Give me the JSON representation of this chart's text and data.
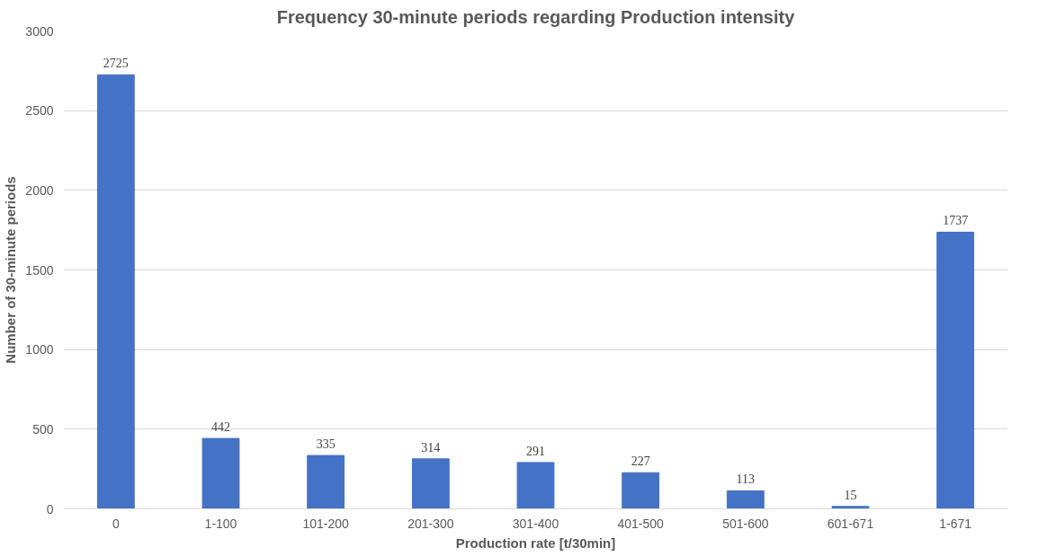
{
  "chart_data": {
    "type": "bar",
    "title": "Frequency 30-minute periods regarding Production intensity",
    "xlabel": "Production rate [t/30min]",
    "ylabel": "Number of 30-minute periods",
    "categories": [
      "0",
      "1-100",
      "101-200",
      "201-300",
      "301-400",
      "401-500",
      "501-600",
      "601-671",
      "1-671"
    ],
    "values": [
      2725,
      442,
      335,
      314,
      291,
      227,
      113,
      15,
      1737
    ],
    "color": "#4472c4",
    "ylim": [
      0,
      3000
    ],
    "yticks": [
      0,
      500,
      1000,
      1500,
      2000,
      2500,
      3000
    ],
    "grid": "y",
    "data_labels": true
  }
}
